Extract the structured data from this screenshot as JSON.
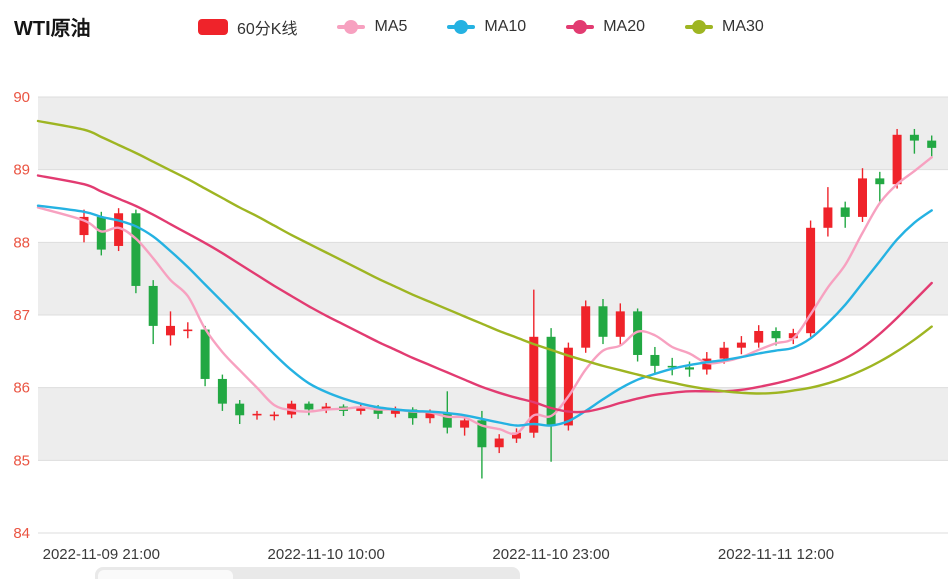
{
  "title": "WTI原油",
  "legend": {
    "items": [
      {
        "label": "60分K线",
        "color": "#ef232a",
        "marker": "rect"
      },
      {
        "label": "MA5",
        "color": "#f7a1c0",
        "marker": "line"
      },
      {
        "label": "MA10",
        "color": "#25b2e2",
        "marker": "line"
      },
      {
        "label": "MA20",
        "color": "#e23b71",
        "marker": "line"
      },
      {
        "label": "MA30",
        "color": "#9eb522",
        "marker": "line"
      }
    ]
  },
  "colors": {
    "up": "#ef232a",
    "down": "#22a843",
    "y_axis_label": "#ea5442",
    "x_axis_label": "#3a3a3a",
    "band_gray": "#ededed",
    "band_white": "#ffffff",
    "grid_line": "#dddddd"
  },
  "chart_data": {
    "type": "candlestick",
    "title": "WTI原油",
    "candle_series_name": "60分K线",
    "interval": "60分",
    "y_axis": {
      "min": 84,
      "max": 90,
      "step": 1
    },
    "x_ticks": [
      {
        "candle_index": 2,
        "label": "2022-11-09 21:00"
      },
      {
        "candle_index": 15,
        "label": "2022-11-10 10:00"
      },
      {
        "candle_index": 28,
        "label": "2022-11-10 23:00"
      },
      {
        "candle_index": 41,
        "label": "2022-11-11 12:00"
      }
    ],
    "ohlc": [
      [
        88.1,
        88.45,
        88.0,
        88.35
      ],
      [
        88.35,
        88.42,
        87.82,
        87.9
      ],
      [
        87.95,
        88.47,
        87.88,
        88.4
      ],
      [
        88.4,
        88.45,
        87.3,
        87.4
      ],
      [
        87.4,
        87.48,
        86.6,
        86.85
      ],
      [
        86.72,
        87.05,
        86.58,
        86.85
      ],
      [
        86.78,
        86.9,
        86.68,
        86.8
      ],
      [
        86.8,
        86.85,
        86.02,
        86.12
      ],
      [
        86.12,
        86.18,
        85.68,
        85.78
      ],
      [
        85.78,
        85.83,
        85.5,
        85.62
      ],
      [
        85.62,
        85.68,
        85.56,
        85.64
      ],
      [
        85.61,
        85.67,
        85.55,
        85.63
      ],
      [
        85.63,
        85.82,
        85.58,
        85.78
      ],
      [
        85.78,
        85.81,
        85.62,
        85.7
      ],
      [
        85.7,
        85.79,
        85.65,
        85.74
      ],
      [
        85.74,
        85.77,
        85.61,
        85.68
      ],
      [
        85.68,
        85.77,
        85.63,
        85.73
      ],
      [
        85.73,
        85.76,
        85.57,
        85.64
      ],
      [
        85.64,
        85.74,
        85.59,
        85.7
      ],
      [
        85.7,
        85.73,
        85.49,
        85.58
      ],
      [
        85.58,
        85.7,
        85.51,
        85.65
      ],
      [
        85.65,
        85.95,
        85.37,
        85.45
      ],
      [
        85.45,
        85.63,
        85.34,
        85.55
      ],
      [
        85.55,
        85.68,
        84.75,
        85.18
      ],
      [
        85.18,
        85.36,
        85.1,
        85.3
      ],
      [
        85.3,
        85.44,
        85.24,
        85.38
      ],
      [
        85.38,
        87.35,
        85.31,
        86.7
      ],
      [
        86.7,
        86.82,
        84.98,
        85.48
      ],
      [
        85.48,
        86.62,
        85.41,
        86.55
      ],
      [
        86.55,
        87.2,
        86.48,
        87.12
      ],
      [
        87.12,
        87.22,
        86.6,
        86.7
      ],
      [
        86.7,
        87.16,
        86.58,
        87.05
      ],
      [
        87.05,
        87.09,
        86.36,
        86.45
      ],
      [
        86.45,
        86.56,
        86.2,
        86.3
      ],
      [
        86.3,
        86.41,
        86.17,
        86.28
      ],
      [
        86.28,
        86.36,
        86.15,
        86.25
      ],
      [
        86.25,
        86.49,
        86.18,
        86.4
      ],
      [
        86.4,
        86.63,
        86.33,
        86.55
      ],
      [
        86.55,
        86.71,
        86.46,
        86.62
      ],
      [
        86.62,
        86.86,
        86.55,
        86.78
      ],
      [
        86.78,
        86.83,
        86.58,
        86.68
      ],
      [
        86.68,
        86.81,
        86.6,
        86.75
      ],
      [
        86.75,
        88.3,
        86.7,
        88.2
      ],
      [
        88.2,
        88.76,
        88.08,
        88.48
      ],
      [
        88.48,
        88.56,
        88.2,
        88.35
      ],
      [
        88.35,
        89.02,
        88.28,
        88.88
      ],
      [
        88.88,
        88.97,
        88.56,
        88.8
      ],
      [
        88.8,
        89.56,
        88.74,
        89.48
      ],
      [
        89.48,
        89.56,
        89.22,
        89.4
      ],
      [
        89.4,
        89.47,
        89.18,
        89.3
      ]
    ],
    "series": [
      {
        "name": "MA5",
        "color": "#f7a1c0",
        "values": [
          88.3,
          88.15,
          88.2,
          88.05,
          87.78,
          87.48,
          87.26,
          86.81,
          86.49,
          86.24,
          86.0,
          85.76,
          85.69,
          85.67,
          85.7,
          85.71,
          85.73,
          85.7,
          85.7,
          85.67,
          85.66,
          85.6,
          85.59,
          85.48,
          85.43,
          85.37,
          85.62,
          85.61,
          85.88,
          86.25,
          86.51,
          86.58,
          86.77,
          86.72,
          86.56,
          86.47,
          86.34,
          86.36,
          86.42,
          86.52,
          86.61,
          86.68,
          87.01,
          87.38,
          87.69,
          88.13,
          88.54,
          88.8,
          88.98,
          89.17
        ]
      },
      {
        "name": "MA10",
        "color": "#25b2e2",
        "values": [
          88.42,
          88.35,
          88.3,
          88.22,
          88.08,
          87.88,
          87.66,
          87.42,
          87.18,
          86.94,
          86.7,
          86.46,
          86.24,
          86.06,
          85.94,
          85.85,
          85.78,
          85.73,
          85.7,
          85.68,
          85.67,
          85.65,
          85.62,
          85.57,
          85.52,
          85.48,
          85.5,
          85.48,
          85.54,
          85.68,
          85.84,
          85.99,
          86.11,
          86.19,
          86.26,
          86.31,
          86.35,
          86.38,
          86.42,
          86.47,
          86.51,
          86.55,
          86.68,
          86.89,
          87.14,
          87.44,
          87.74,
          88.04,
          88.27,
          88.44
        ]
      },
      {
        "name": "MA20",
        "color": "#e23b71",
        "values": [
          88.8,
          88.7,
          88.6,
          88.5,
          88.38,
          88.25,
          88.12,
          87.99,
          87.85,
          87.7,
          87.55,
          87.4,
          87.26,
          87.12,
          86.99,
          86.87,
          86.75,
          86.63,
          86.52,
          86.41,
          86.31,
          86.21,
          86.11,
          86.01,
          85.93,
          85.86,
          85.8,
          85.72,
          85.67,
          85.67,
          85.72,
          85.79,
          85.85,
          85.9,
          85.93,
          85.95,
          85.95,
          85.95,
          85.97,
          86.01,
          86.06,
          86.12,
          86.2,
          86.29,
          86.4,
          86.55,
          86.74,
          86.96,
          87.2,
          87.44
        ]
      },
      {
        "name": "MA30",
        "color": "#9eb522",
        "values": [
          89.55,
          89.45,
          89.34,
          89.23,
          89.11,
          88.99,
          88.87,
          88.74,
          88.61,
          88.48,
          88.36,
          88.23,
          88.1,
          87.98,
          87.86,
          87.74,
          87.62,
          87.5,
          87.39,
          87.28,
          87.18,
          87.08,
          86.98,
          86.88,
          86.78,
          86.69,
          86.6,
          86.52,
          86.44,
          86.37,
          86.3,
          86.24,
          86.18,
          86.12,
          86.07,
          86.02,
          85.98,
          85.95,
          85.93,
          85.92,
          85.93,
          85.96,
          86.0,
          86.06,
          86.14,
          86.24,
          86.36,
          86.5,
          86.66,
          86.84
        ]
      }
    ],
    "legend_entries": [
      "60分K线",
      "MA5",
      "MA10",
      "MA20",
      "MA30"
    ],
    "grid": "horizontal-only",
    "legend_position": "top"
  }
}
